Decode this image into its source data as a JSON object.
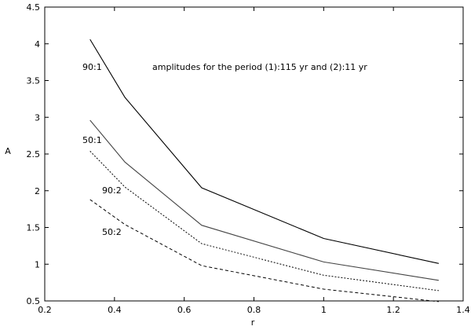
{
  "chart_data": {
    "type": "line",
    "title": "",
    "annotation": "amplitudes for the period (1):115 yr and (2):11 yr",
    "xlabel": "r",
    "ylabel": "A",
    "xlim": [
      0.2,
      1.4
    ],
    "ylim": [
      0.5,
      4.5
    ],
    "xticks": [
      0.2,
      0.4,
      0.6,
      0.8,
      1,
      1.2,
      1.4
    ],
    "xtick_labels": [
      "0.2",
      "0.4",
      "0.6",
      "0.8",
      "1",
      "1.2",
      "1.4"
    ],
    "yticks": [
      0.5,
      1,
      1.5,
      2,
      2.5,
      3,
      3.5,
      4,
      4.5
    ],
    "ytick_labels": [
      "0.5",
      "1",
      "1.5",
      "2",
      "2.5",
      "3",
      "3.5",
      "4",
      "4.5"
    ],
    "grid": false,
    "legend": "none",
    "x": [
      0.33,
      0.43,
      0.65,
      1.0,
      1.33
    ],
    "series": [
      {
        "name": "90:1",
        "style": "solid",
        "values": [
          4.06,
          3.27,
          2.04,
          1.35,
          1.01
        ]
      },
      {
        "name": "50:1",
        "style": "solid",
        "values": [
          2.96,
          2.39,
          1.53,
          1.03,
          0.78
        ]
      },
      {
        "name": "90:2",
        "style": "dotted",
        "values": [
          2.54,
          2.05,
          1.28,
          0.85,
          0.64
        ]
      },
      {
        "name": "50:2",
        "style": "dashed",
        "values": [
          1.88,
          1.54,
          0.98,
          0.66,
          0.49
        ]
      }
    ]
  }
}
